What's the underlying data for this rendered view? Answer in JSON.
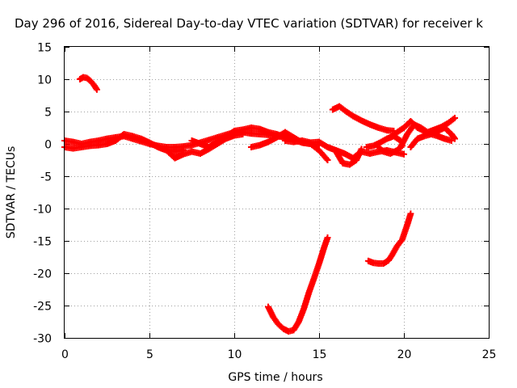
{
  "chart_data": {
    "type": "scatter",
    "title": "Day 296 of 2016, Sidereal Day-to-day VTEC variation (SDTVAR) for receiver k",
    "xlabel": "GPS time / hours",
    "ylabel": "SDTVAR / TECUs",
    "xlim": [
      0,
      25
    ],
    "ylim": [
      -30,
      15
    ],
    "xticks": [
      0,
      5,
      10,
      15,
      20,
      25
    ],
    "yticks": [
      -30,
      -25,
      -20,
      -15,
      -10,
      -5,
      0,
      5,
      10,
      15
    ],
    "grid": true,
    "marker": "plus",
    "series_color": "#ff0000",
    "series": [
      {
        "x": [
          0.0,
          0.5,
          1.0,
          1.5,
          2.0,
          2.5,
          3.0,
          3.5,
          4.0,
          4.5,
          5.0,
          5.5,
          6.0,
          6.5,
          7.0,
          7.5,
          8.0,
          8.5,
          9.0,
          9.5,
          10.0,
          10.5,
          11.0,
          11.5,
          12.0,
          12.5,
          13.0,
          13.5,
          14.0,
          14.5,
          15.0
        ],
        "y": [
          0.5,
          0.3,
          0.0,
          0.3,
          0.5,
          0.8,
          1.0,
          1.2,
          0.8,
          0.4,
          0.0,
          -0.3,
          -0.5,
          -0.5,
          -0.4,
          -0.2,
          0.2,
          0.6,
          1.0,
          1.4,
          1.8,
          1.8,
          1.6,
          1.5,
          1.4,
          1.2,
          1.0,
          0.6,
          0.2,
          0.0,
          -0.2
        ]
      },
      {
        "x": [
          0.0,
          0.5,
          1.0,
          1.5,
          2.0,
          2.5,
          3.0,
          3.5,
          4.0,
          4.5,
          5.0,
          5.5,
          6.0,
          6.5,
          7.0
        ],
        "y": [
          -0.5,
          -0.7,
          -0.5,
          -0.3,
          -0.2,
          0.0,
          0.5,
          1.5,
          1.2,
          0.8,
          0.2,
          -0.5,
          -1.0,
          -1.2,
          -1.0
        ]
      },
      {
        "x": [
          6.0,
          6.5,
          7.0,
          7.5,
          8.0,
          8.5,
          9.0,
          9.5,
          10.0,
          10.5
        ],
        "y": [
          -1.0,
          -2.2,
          -1.6,
          -1.2,
          -1.5,
          -0.8,
          0.0,
          0.8,
          1.3,
          1.5
        ]
      },
      {
        "x": [
          7.5,
          8.0,
          8.5,
          9.0,
          9.5,
          10.0,
          10.5,
          11.0,
          11.5,
          12.0,
          12.5,
          13.0
        ],
        "y": [
          0.5,
          0.0,
          -0.5,
          0.3,
          1.0,
          2.0,
          2.2,
          2.5,
          2.3,
          1.8,
          1.5,
          1.0
        ]
      },
      {
        "x": [
          11.0,
          11.5,
          12.0,
          12.5,
          13.0,
          13.5,
          14.0,
          14.5,
          15.0,
          15.5
        ],
        "y": [
          -0.5,
          -0.2,
          0.3,
          1.0,
          1.8,
          1.0,
          0.2,
          0.0,
          -1.0,
          -2.5
        ]
      },
      {
        "x": [
          13.0,
          13.5,
          14.0,
          14.5,
          15.0,
          15.5,
          16.0,
          16.5,
          17.0,
          17.5,
          18.0,
          18.5,
          19.0,
          19.5,
          20.0
        ],
        "y": [
          0.5,
          0.3,
          0.5,
          0.2,
          0.3,
          -0.5,
          -1.0,
          -1.5,
          -2.2,
          -1.2,
          -1.5,
          -1.2,
          -1.0,
          -1.3,
          -1.6
        ]
      },
      {
        "x": [
          15.8,
          16.2,
          16.6,
          17.0,
          17.5,
          18.0,
          18.5,
          19.0,
          19.4
        ],
        "y": [
          5.3,
          5.8,
          5.0,
          4.3,
          3.6,
          3.0,
          2.5,
          2.1,
          2.0
        ]
      },
      {
        "x": [
          16.0,
          16.4,
          16.8,
          17.2,
          17.5
        ],
        "y": [
          -1.2,
          -3.0,
          -3.2,
          -2.5,
          -0.8
        ]
      },
      {
        "x": [
          17.8,
          18.2,
          18.6,
          19.0,
          19.4,
          19.8
        ],
        "y": [
          -0.5,
          -0.3,
          0.2,
          0.8,
          1.2,
          0.5
        ]
      },
      {
        "x": [
          18.5,
          18.8,
          19.2,
          19.6,
          19.9
        ],
        "y": [
          -0.5,
          -1.2,
          -1.5,
          -1.0,
          -0.3
        ]
      },
      {
        "x": [
          19.2,
          19.6,
          20.0,
          20.4,
          20.8,
          21.2,
          21.6,
          22.0,
          22.4,
          22.8
        ],
        "y": [
          1.0,
          1.8,
          2.5,
          3.5,
          2.5,
          2.0,
          1.5,
          1.2,
          0.8,
          0.5
        ]
      },
      {
        "x": [
          19.8,
          20.2,
          20.6,
          21.0,
          21.4,
          21.8,
          22.2,
          22.6,
          23.0
        ],
        "y": [
          -0.5,
          1.5,
          3.0,
          2.5,
          1.8,
          2.2,
          2.6,
          3.2,
          4.0
        ]
      },
      {
        "x": [
          20.4,
          20.8,
          21.2,
          21.6,
          22.0,
          22.4,
          22.8,
          23.0
        ],
        "y": [
          -0.5,
          0.8,
          1.2,
          1.5,
          2.0,
          2.5,
          1.5,
          0.8
        ]
      },
      {
        "x": [
          0.9,
          1.1,
          1.3,
          1.5,
          1.7,
          1.9
        ],
        "y": [
          10.0,
          10.3,
          10.2,
          9.8,
          9.2,
          8.4
        ]
      },
      {
        "x": [
          12.0,
          12.3,
          12.6,
          12.9,
          13.2,
          13.5,
          13.8,
          14.1,
          14.4,
          14.7,
          15.0,
          15.3,
          15.5
        ],
        "y": [
          -25.2,
          -26.8,
          -27.9,
          -28.6,
          -29.0,
          -28.8,
          -27.5,
          -25.5,
          -23.0,
          -20.8,
          -18.5,
          -16.0,
          -14.5
        ]
      },
      {
        "x": [
          17.9,
          18.2,
          18.5,
          18.8,
          19.1,
          19.3,
          19.6,
          19.9,
          20.2,
          20.4
        ],
        "y": [
          -18.1,
          -18.4,
          -18.5,
          -18.5,
          -18.0,
          -17.2,
          -15.8,
          -14.8,
          -12.5,
          -10.8
        ]
      }
    ]
  }
}
